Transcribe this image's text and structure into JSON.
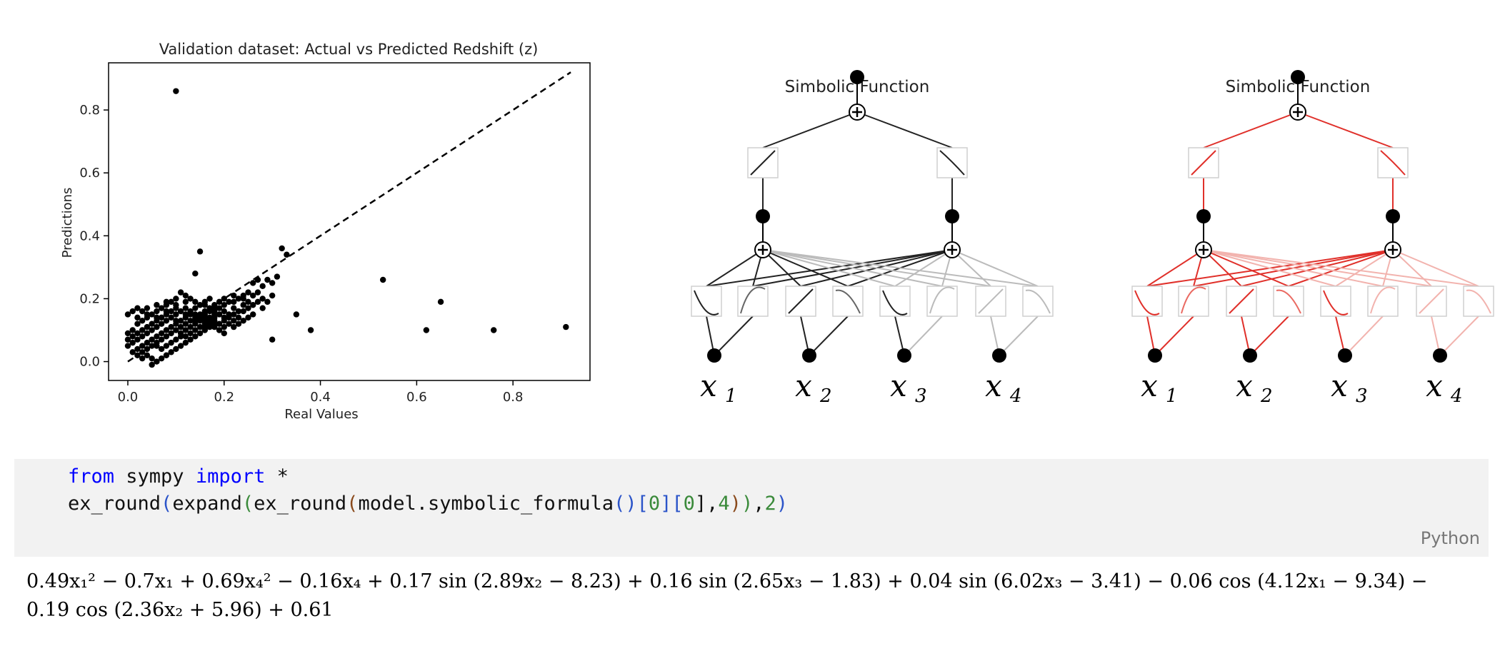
{
  "chart_data": {
    "type": "scatter",
    "title": "Validation dataset: Actual vs Predicted Redshift (z)",
    "xlabel": "Real Values",
    "ylabel": "Predictions",
    "xlim": [
      -0.04,
      0.96
    ],
    "ylim": [
      -0.06,
      0.95
    ],
    "xticks": [
      0.0,
      0.2,
      0.4,
      0.6,
      0.8
    ],
    "yticks": [
      0.0,
      0.2,
      0.4,
      0.6,
      0.8
    ],
    "grid": false,
    "reference_line": {
      "style": "dashed",
      "from": [
        0.0,
        0.0
      ],
      "to": [
        0.92,
        0.92
      ]
    },
    "series": [
      {
        "points": [
          [
            0.1,
            0.86
          ],
          [
            0.53,
            0.26
          ],
          [
            0.65,
            0.19
          ],
          [
            0.76,
            0.1
          ],
          [
            0.91,
            0.11
          ],
          [
            0.62,
            0.1
          ],
          [
            0.38,
            0.1
          ],
          [
            0.3,
            0.07
          ],
          [
            0.35,
            0.15
          ],
          [
            0.33,
            0.34
          ],
          [
            0.32,
            0.36
          ],
          [
            0.31,
            0.27
          ],
          [
            0.29,
            0.26
          ],
          [
            0.3,
            0.25
          ],
          [
            0.27,
            0.26
          ],
          [
            0.28,
            0.24
          ],
          [
            0.26,
            0.25
          ],
          [
            0.25,
            0.22
          ],
          [
            0.24,
            0.21
          ],
          [
            0.23,
            0.2
          ],
          [
            0.22,
            0.21
          ],
          [
            0.21,
            0.19
          ],
          [
            0.2,
            0.2
          ],
          [
            0.15,
            0.35
          ],
          [
            0.14,
            0.28
          ],
          [
            0.17,
            0.16
          ],
          [
            0.16,
            0.14
          ],
          [
            0.18,
            0.15
          ],
          [
            0.19,
            0.17
          ],
          [
            0.2,
            0.16
          ],
          [
            0.21,
            0.14
          ],
          [
            0.22,
            0.17
          ],
          [
            0.23,
            0.16
          ],
          [
            0.24,
            0.18
          ],
          [
            0.25,
            0.19
          ],
          [
            0.26,
            0.21
          ],
          [
            0.27,
            0.22
          ],
          [
            0.28,
            0.2
          ],
          [
            0.11,
            0.22
          ],
          [
            0.12,
            0.21
          ],
          [
            0.13,
            0.2
          ],
          [
            0.14,
            0.19
          ],
          [
            0.15,
            0.18
          ],
          [
            0.16,
            0.19
          ],
          [
            0.17,
            0.2
          ],
          [
            0.18,
            0.18
          ],
          [
            0.19,
            0.19
          ],
          [
            0.1,
            0.2
          ],
          [
            0.09,
            0.19
          ],
          [
            0.08,
            0.18
          ],
          [
            0.07,
            0.17
          ],
          [
            0.06,
            0.16
          ],
          [
            0.05,
            0.15
          ],
          [
            0.04,
            0.14
          ],
          [
            0.03,
            0.13
          ],
          [
            0.02,
            0.12
          ],
          [
            0.01,
            0.1
          ],
          [
            0.0,
            0.09
          ],
          [
            0.0,
            0.05
          ],
          [
            0.01,
            0.06
          ],
          [
            0.02,
            0.07
          ],
          [
            0.03,
            0.08
          ],
          [
            0.04,
            0.09
          ],
          [
            0.05,
            0.1
          ],
          [
            0.06,
            0.11
          ],
          [
            0.07,
            0.12
          ],
          [
            0.08,
            0.13
          ],
          [
            0.09,
            0.14
          ],
          [
            0.1,
            0.15
          ],
          [
            0.11,
            0.16
          ],
          [
            0.12,
            0.17
          ],
          [
            0.13,
            0.16
          ],
          [
            0.14,
            0.15
          ],
          [
            0.15,
            0.14
          ],
          [
            0.16,
            0.13
          ],
          [
            0.17,
            0.12
          ],
          [
            0.18,
            0.11
          ],
          [
            0.19,
            0.1
          ],
          [
            0.2,
            0.09
          ],
          [
            0.02,
            0.02
          ],
          [
            0.03,
            0.03
          ],
          [
            0.04,
            0.04
          ],
          [
            0.05,
            0.05
          ],
          [
            0.06,
            0.06
          ],
          [
            0.07,
            0.07
          ],
          [
            0.08,
            0.08
          ],
          [
            0.09,
            0.09
          ],
          [
            0.1,
            0.1
          ],
          [
            0.11,
            0.11
          ],
          [
            0.12,
            0.12
          ],
          [
            0.13,
            0.13
          ],
          [
            0.14,
            0.14
          ],
          [
            0.15,
            0.15
          ],
          [
            0.16,
            0.16
          ],
          [
            0.17,
            0.17
          ],
          [
            0.18,
            0.16
          ],
          [
            0.19,
            0.15
          ],
          [
            0.2,
            0.14
          ],
          [
            0.21,
            0.15
          ],
          [
            0.22,
            0.15
          ],
          [
            0.23,
            0.14
          ],
          [
            0.24,
            0.16
          ],
          [
            0.25,
            0.17
          ],
          [
            0.26,
            0.18
          ],
          [
            0.27,
            0.19
          ],
          [
            0.04,
            0.02
          ],
          [
            0.05,
            0.01
          ],
          [
            0.06,
            0.0
          ],
          [
            0.07,
            0.01
          ],
          [
            0.08,
            0.02
          ],
          [
            0.09,
            0.03
          ],
          [
            0.1,
            0.04
          ],
          [
            0.11,
            0.05
          ],
          [
            0.12,
            0.06
          ],
          [
            0.13,
            0.07
          ],
          [
            0.14,
            0.08
          ],
          [
            0.15,
            0.09
          ],
          [
            0.16,
            0.1
          ],
          [
            0.17,
            0.11
          ],
          [
            0.05,
            -0.01
          ],
          [
            0.03,
            0.01
          ],
          [
            0.0,
            0.15
          ],
          [
            0.01,
            0.16
          ],
          [
            0.02,
            0.17
          ],
          [
            0.03,
            0.16
          ],
          [
            0.04,
            0.17
          ],
          [
            0.06,
            0.18
          ],
          [
            0.08,
            0.19
          ],
          [
            0.1,
            0.18
          ],
          [
            0.12,
            0.19
          ],
          [
            0.14,
            0.17
          ],
          [
            0.16,
            0.18
          ],
          [
            0.18,
            0.17
          ],
          [
            0.2,
            0.18
          ],
          [
            0.22,
            0.19
          ],
          [
            0.24,
            0.2
          ],
          [
            0.06,
            0.13
          ],
          [
            0.07,
            0.14
          ],
          [
            0.08,
            0.15
          ],
          [
            0.09,
            0.16
          ],
          [
            0.1,
            0.17
          ],
          [
            0.11,
            0.13
          ],
          [
            0.12,
            0.14
          ],
          [
            0.13,
            0.15
          ],
          [
            0.05,
            0.12
          ],
          [
            0.04,
            0.11
          ],
          [
            0.03,
            0.1
          ],
          [
            0.02,
            0.09
          ],
          [
            0.01,
            0.08
          ],
          [
            0.06,
            0.08
          ],
          [
            0.07,
            0.09
          ],
          [
            0.08,
            0.1
          ],
          [
            0.09,
            0.11
          ],
          [
            0.1,
            0.12
          ],
          [
            0.11,
            0.09
          ],
          [
            0.12,
            0.1
          ],
          [
            0.13,
            0.11
          ],
          [
            0.14,
            0.12
          ],
          [
            0.15,
            0.13
          ],
          [
            0.16,
            0.15
          ],
          [
            0.17,
            0.14
          ],
          [
            0.18,
            0.13
          ],
          [
            0.19,
            0.12
          ],
          [
            0.2,
            0.13
          ],
          [
            0.21,
            0.12
          ],
          [
            0.22,
            0.13
          ],
          [
            0.23,
            0.12
          ],
          [
            0.04,
            0.06
          ],
          [
            0.05,
            0.07
          ],
          [
            0.06,
            0.05
          ],
          [
            0.07,
            0.04
          ],
          [
            0.08,
            0.05
          ],
          [
            0.09,
            0.06
          ],
          [
            0.1,
            0.07
          ],
          [
            0.11,
            0.08
          ],
          [
            0.12,
            0.08
          ],
          [
            0.13,
            0.09
          ],
          [
            0.14,
            0.1
          ],
          [
            0.15,
            0.11
          ],
          [
            0.16,
            0.12
          ],
          [
            0.17,
            0.13
          ],
          [
            0.18,
            0.14
          ],
          [
            0.02,
            0.04
          ],
          [
            0.03,
            0.05
          ],
          [
            0.01,
            0.03
          ],
          [
            0.0,
            0.07
          ],
          [
            0.02,
            0.14
          ],
          [
            0.04,
            0.15
          ],
          [
            0.06,
            0.14
          ],
          [
            0.08,
            0.16
          ],
          [
            0.1,
            0.13
          ],
          [
            0.12,
            0.15
          ],
          [
            0.14,
            0.13
          ],
          [
            0.16,
            0.11
          ],
          [
            0.18,
            0.12
          ],
          [
            0.2,
            0.11
          ],
          [
            0.22,
            0.11
          ],
          [
            0.24,
            0.13
          ],
          [
            0.26,
            0.15
          ],
          [
            0.28,
            0.17
          ],
          [
            0.29,
            0.19
          ],
          [
            0.3,
            0.21
          ],
          [
            0.25,
            0.14
          ]
        ]
      }
    ]
  },
  "kan_left": {
    "title": "Simbolic Function",
    "inputs": [
      "x",
      "x",
      "x",
      "x"
    ],
    "input_subscripts": [
      "1",
      "2",
      "3",
      "4"
    ],
    "edge_color": "#222222"
  },
  "kan_right": {
    "title": "Simbolic Function",
    "inputs": [
      "x",
      "x",
      "x",
      "x"
    ],
    "input_subscripts": [
      "1",
      "2",
      "3",
      "4"
    ],
    "edge_color": "#e0302a"
  },
  "code": {
    "kw_from": "from",
    "mod": " sympy ",
    "kw_import": "import",
    "star": " *",
    "l2_a": "ex_round",
    "l2_b": "(",
    "l2_c": "expand",
    "l2_d": "(",
    "l2_e": "ex_round",
    "l2_f": "(",
    "l2_g": "model.symbolic_formula",
    "l2_h": "()",
    "l2_i": "[",
    "l2_j": "0",
    "l2_k": "][",
    "l2_l": "0",
    "l2_m": "],",
    "l2_n": "4",
    "l2_o": ")",
    "l2_p": ")",
    "l2_q": ",",
    "l2_r": "2",
    "l2_s": ")",
    "language": "Python"
  },
  "output": {
    "line1": "0.49x₁² − 0.7x₁ + 0.69x₄² − 0.16x₄ + 0.17 sin (2.89x₂ − 8.23) + 0.16 sin (2.65x₃ − 1.83) + 0.04 sin (6.02x₃ − 3.41) − 0.06 cos (4.12x₁ − 9.34) −",
    "line2": "0.19 cos (2.36x₂ + 5.96) + 0.61"
  }
}
